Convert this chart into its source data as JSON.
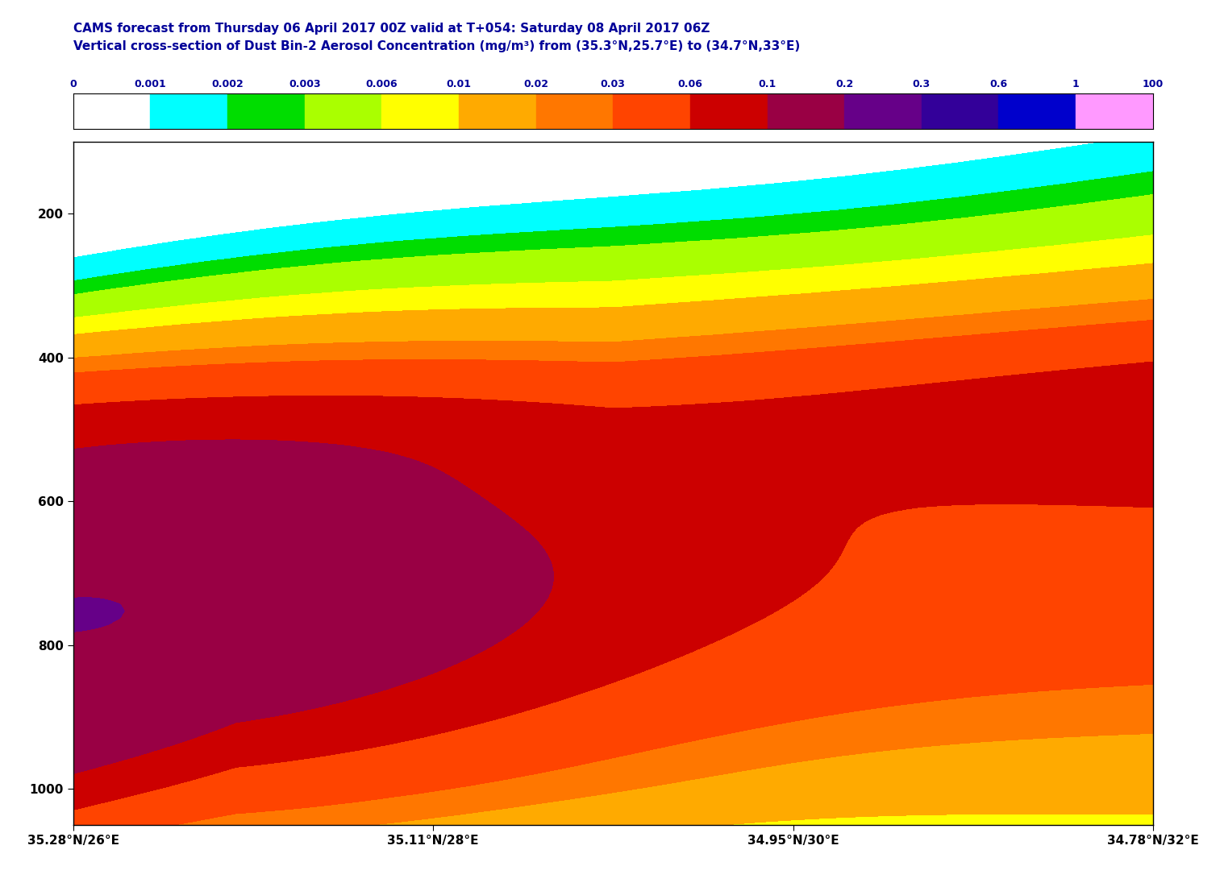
{
  "title1": "CAMS forecast from Thursday 06 April 2017 00Z valid at T+054: Saturday 08 April 2017 06Z",
  "title2": "Vertical cross-section of Dust Bin-2 Aerosol Concentration (mg/m³) from (35.3°N,25.7°E) to (34.7°N,33°E)",
  "colorbar_levels": [
    0,
    0.001,
    0.002,
    0.003,
    0.006,
    0.01,
    0.02,
    0.03,
    0.06,
    0.1,
    0.2,
    0.3,
    0.6,
    1,
    100
  ],
  "colorbar_colors": [
    "#ffffff",
    "#00ffff",
    "#00dd00",
    "#aaff00",
    "#ffff00",
    "#ffaa00",
    "#ff7700",
    "#ff4400",
    "#cc0000",
    "#990044",
    "#660088",
    "#330099",
    "#0000cc",
    "#ff99ff"
  ],
  "xtick_labels": [
    "35.28°N/26°E",
    "35.11°N/28°E",
    "34.95°N/30°E",
    "34.78°N/32°E"
  ],
  "xtick_positions": [
    0.0,
    0.333,
    0.667,
    1.0
  ],
  "ytick_labels": [
    "200",
    "400",
    "600",
    "800",
    "1000"
  ],
  "ytick_positions": [
    200,
    400,
    600,
    800,
    1000
  ],
  "ylim": [
    1050,
    100
  ],
  "text_color": "#000099",
  "background_color": "#ffffff"
}
